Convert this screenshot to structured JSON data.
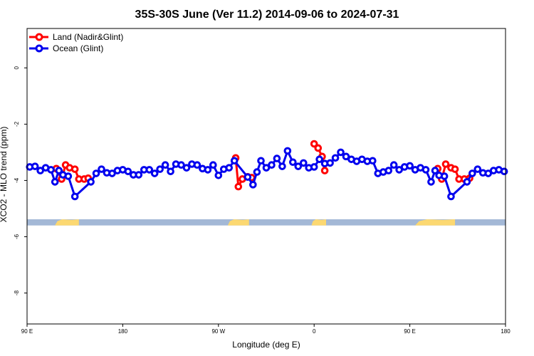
{
  "chart_data": {
    "type": "line",
    "title": "35S-30S June (Ver 11.2)   2014-09-06 to 2024-07-31",
    "xlabel": "Longitude (deg E)",
    "ylabel": "XCO2 - MLO trend (ppm)",
    "xlim": [
      90,
      450
    ],
    "ylim": [
      -9.1,
      1.4
    ],
    "x_tick_values": [
      90,
      162,
      234,
      306,
      378,
      450
    ],
    "x_tick_labels": [
      "90 E",
      "180",
      "90 W",
      "0",
      "90 E",
      "180"
    ],
    "y_tick_values": [
      0,
      -2,
      -4,
      -6,
      -8
    ],
    "y_tick_labels": [
      "0",
      "-2",
      "-4",
      "-6",
      "-8"
    ],
    "grid": false,
    "legend_position": "top-left",
    "land_strip": {
      "y_range": [
        -5.38,
        -5.6
      ],
      "ocean_color": "#a3b8d6",
      "land_color": "#fcd871",
      "land_segments": [
        [
          111,
          129
        ],
        [
          241,
          257
        ],
        [
          304,
          315
        ],
        [
          382,
          412
        ]
      ]
    },
    "series": [
      {
        "name": "Land (Nadir&Glint)",
        "color": "#ff0000",
        "points": [
          [
            112,
            -3.58
          ],
          [
            116,
            -3.95
          ],
          [
            119,
            -3.45
          ],
          [
            122,
            -3.55
          ],
          [
            126,
            -3.6
          ],
          [
            129,
            -3.95
          ],
          [
            133,
            -3.95
          ],
          [
            136,
            -3.92
          ],
          [
            247,
            -3.2
          ],
          [
            249,
            -4.22
          ],
          [
            252,
            -3.95
          ],
          [
            256,
            -3.87
          ],
          [
            259,
            -3.9
          ],
          [
            306,
            -2.7
          ],
          [
            309,
            -2.85
          ],
          [
            312,
            -3.15
          ],
          [
            314,
            -3.65
          ],
          [
            399,
            -3.58
          ],
          [
            402,
            -3.95
          ],
          [
            405,
            -3.42
          ],
          [
            409,
            -3.55
          ],
          [
            412,
            -3.6
          ],
          [
            415,
            -3.95
          ],
          [
            419,
            -3.95
          ],
          [
            423,
            -3.92
          ]
        ]
      },
      {
        "name": "Ocean (Glint)",
        "color": "#0000ee",
        "points": [
          [
            92,
            -3.52
          ],
          [
            96,
            -3.5
          ],
          [
            100,
            -3.65
          ],
          [
            104,
            -3.55
          ],
          [
            108,
            -3.62
          ],
          [
            111,
            -4.05
          ],
          [
            114,
            -3.65
          ],
          [
            117,
            -3.8
          ],
          [
            121,
            -3.85
          ],
          [
            126,
            -4.57
          ],
          [
            138,
            -4.05
          ],
          [
            142,
            -3.75
          ],
          [
            146,
            -3.6
          ],
          [
            150,
            -3.73
          ],
          [
            154,
            -3.75
          ],
          [
            158,
            -3.65
          ],
          [
            162,
            -3.62
          ],
          [
            166,
            -3.68
          ],
          [
            170,
            -3.8
          ],
          [
            174,
            -3.8
          ],
          [
            178,
            -3.62
          ],
          [
            182,
            -3.62
          ],
          [
            186,
            -3.75
          ],
          [
            190,
            -3.6
          ],
          [
            194,
            -3.45
          ],
          [
            198,
            -3.68
          ],
          [
            202,
            -3.42
          ],
          [
            206,
            -3.45
          ],
          [
            210,
            -3.55
          ],
          [
            214,
            -3.42
          ],
          [
            218,
            -3.45
          ],
          [
            222,
            -3.58
          ],
          [
            226,
            -3.62
          ],
          [
            230,
            -3.45
          ],
          [
            234,
            -3.82
          ],
          [
            238,
            -3.6
          ],
          [
            242,
            -3.55
          ],
          [
            246,
            -3.3
          ],
          [
            256,
            -3.88
          ],
          [
            260,
            -4.15
          ],
          [
            263,
            -3.7
          ],
          [
            266,
            -3.3
          ],
          [
            270,
            -3.55
          ],
          [
            274,
            -3.45
          ],
          [
            278,
            -3.22
          ],
          [
            282,
            -3.5
          ],
          [
            286,
            -2.95
          ],
          [
            290,
            -3.35
          ],
          [
            294,
            -3.5
          ],
          [
            298,
            -3.38
          ],
          [
            302,
            -3.55
          ],
          [
            306,
            -3.52
          ],
          [
            310,
            -3.25
          ],
          [
            314,
            -3.4
          ],
          [
            318,
            -3.38
          ],
          [
            322,
            -3.2
          ],
          [
            326,
            -3.0
          ],
          [
            330,
            -3.15
          ],
          [
            334,
            -3.25
          ],
          [
            338,
            -3.32
          ],
          [
            342,
            -3.25
          ],
          [
            346,
            -3.32
          ],
          [
            350,
            -3.3
          ],
          [
            354,
            -3.75
          ],
          [
            358,
            -3.7
          ],
          [
            362,
            -3.65
          ],
          [
            366,
            -3.45
          ],
          [
            370,
            -3.62
          ],
          [
            374,
            -3.52
          ],
          [
            378,
            -3.48
          ],
          [
            382,
            -3.62
          ],
          [
            386,
            -3.55
          ],
          [
            390,
            -3.62
          ],
          [
            394,
            -4.05
          ],
          [
            397,
            -3.65
          ],
          [
            400,
            -3.82
          ],
          [
            404,
            -3.85
          ],
          [
            409,
            -4.57
          ],
          [
            421,
            -4.05
          ],
          [
            425,
            -3.75
          ],
          [
            429,
            -3.6
          ],
          [
            433,
            -3.73
          ],
          [
            437,
            -3.75
          ],
          [
            441,
            -3.65
          ],
          [
            445,
            -3.62
          ],
          [
            449,
            -3.68
          ]
        ]
      }
    ]
  }
}
